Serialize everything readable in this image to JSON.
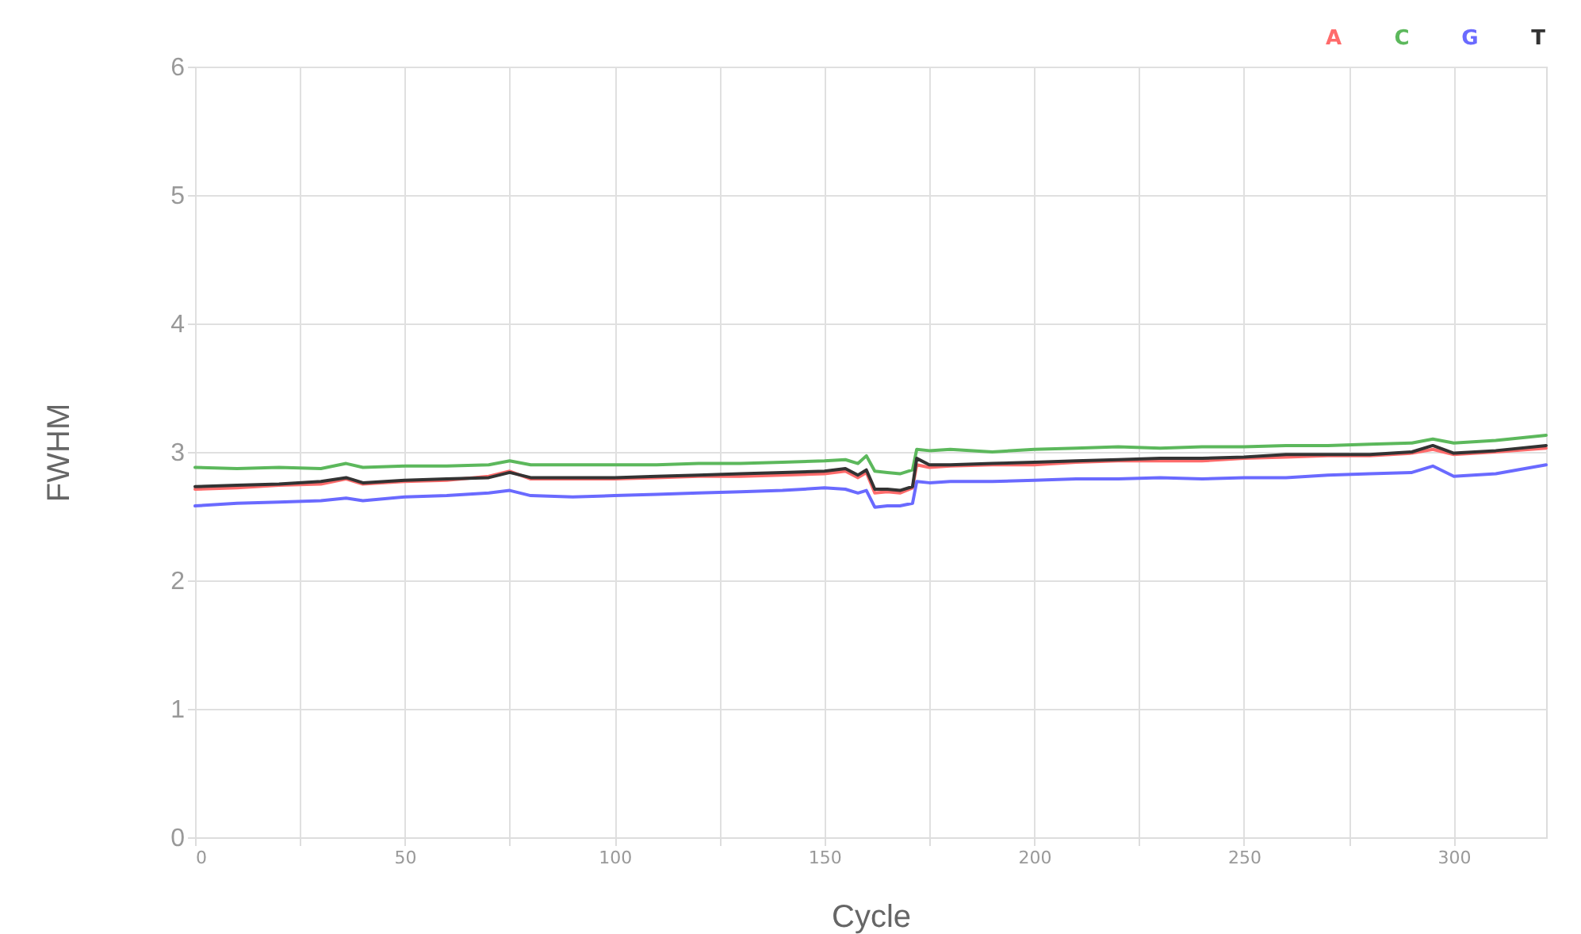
{
  "chart_data": {
    "type": "line",
    "xlabel": "Cycle",
    "ylabel": "FWHM",
    "x": [
      0,
      10,
      20,
      30,
      36,
      40,
      50,
      60,
      70,
      75,
      80,
      90,
      100,
      110,
      120,
      130,
      140,
      150,
      155,
      158,
      160,
      162,
      165,
      168,
      171,
      172,
      175,
      180,
      190,
      200,
      210,
      220,
      230,
      240,
      250,
      260,
      270,
      280,
      290,
      295,
      300,
      310,
      322
    ],
    "series": [
      {
        "name": "A",
        "color": "#ff6b6b",
        "values": [
          2.71,
          2.72,
          2.74,
          2.75,
          2.79,
          2.75,
          2.77,
          2.78,
          2.81,
          2.85,
          2.79,
          2.79,
          2.79,
          2.8,
          2.81,
          2.81,
          2.82,
          2.83,
          2.85,
          2.8,
          2.84,
          2.68,
          2.69,
          2.68,
          2.72,
          2.9,
          2.88,
          2.89,
          2.9,
          2.9,
          2.92,
          2.93,
          2.93,
          2.93,
          2.95,
          2.96,
          2.97,
          2.97,
          2.99,
          3.02,
          2.98,
          3.0,
          3.03
        ]
      },
      {
        "name": "C",
        "color": "#5cb85c",
        "values": [
          2.88,
          2.87,
          2.88,
          2.87,
          2.91,
          2.88,
          2.89,
          2.89,
          2.9,
          2.93,
          2.9,
          2.9,
          2.9,
          2.9,
          2.91,
          2.91,
          2.92,
          2.93,
          2.94,
          2.91,
          2.97,
          2.85,
          2.84,
          2.83,
          2.86,
          3.02,
          3.01,
          3.02,
          3.0,
          3.02,
          3.03,
          3.04,
          3.03,
          3.04,
          3.04,
          3.05,
          3.05,
          3.06,
          3.07,
          3.1,
          3.07,
          3.09,
          3.13
        ]
      },
      {
        "name": "G",
        "color": "#6a6aff",
        "values": [
          2.58,
          2.6,
          2.61,
          2.62,
          2.64,
          2.62,
          2.65,
          2.66,
          2.68,
          2.7,
          2.66,
          2.65,
          2.66,
          2.67,
          2.68,
          2.69,
          2.7,
          2.72,
          2.71,
          2.68,
          2.7,
          2.57,
          2.58,
          2.58,
          2.6,
          2.77,
          2.76,
          2.77,
          2.77,
          2.78,
          2.79,
          2.79,
          2.8,
          2.79,
          2.8,
          2.8,
          2.82,
          2.83,
          2.84,
          2.89,
          2.81,
          2.83,
          2.9
        ]
      },
      {
        "name": "T",
        "color": "#333333",
        "values": [
          2.73,
          2.74,
          2.75,
          2.77,
          2.8,
          2.76,
          2.78,
          2.79,
          2.8,
          2.84,
          2.8,
          2.8,
          2.8,
          2.81,
          2.82,
          2.83,
          2.84,
          2.85,
          2.87,
          2.82,
          2.86,
          2.71,
          2.71,
          2.7,
          2.73,
          2.95,
          2.9,
          2.9,
          2.91,
          2.92,
          2.93,
          2.94,
          2.95,
          2.95,
          2.96,
          2.98,
          2.98,
          2.98,
          3.0,
          3.05,
          2.99,
          3.01,
          3.05
        ]
      }
    ],
    "xlim": [
      0,
      322
    ],
    "xticks": [
      0,
      {
        "value": 25,
        "label": null
      },
      50,
      {
        "value": 75,
        "label": null
      },
      100,
      {
        "value": 125,
        "label": null
      },
      150,
      {
        "value": 175,
        "label": null
      },
      200,
      {
        "value": 225,
        "label": null
      },
      250,
      {
        "value": 275,
        "label": null
      },
      300
    ],
    "ylim": [
      0,
      6
    ],
    "yticks": [
      0,
      1,
      2,
      3,
      4,
      5,
      6
    ],
    "grid": true,
    "legend": "top right",
    "marker": "none",
    "line_style": "solid"
  }
}
